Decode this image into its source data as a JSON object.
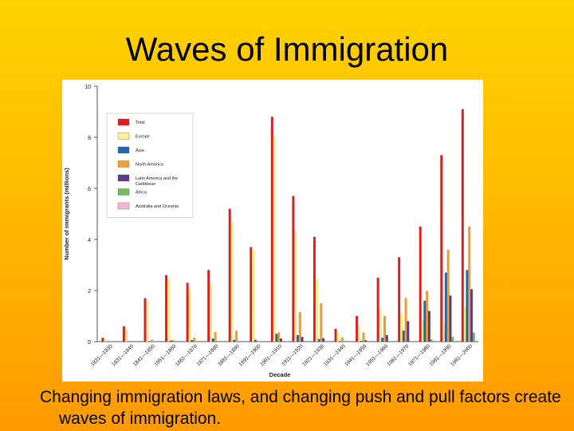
{
  "slide": {
    "title": "Waves of Immigration",
    "caption": "Changing immigration laws, and changing push and pull factors create waves of immigration."
  },
  "colors": {
    "Total": "#e41a1c",
    "Europe": "#fff38a",
    "Asia": "#2166ac",
    "North America": "#f0a030",
    "Latin America and the Caribbean": "#5a3a8c",
    "Africa": "#6cbf5a",
    "Australia and Oceania": "#f7b6d2"
  },
  "chart_data": {
    "type": "bar",
    "title": "",
    "xlabel": "Decade",
    "ylabel": "Number of immigrants (millions)",
    "ylim": [
      0,
      10
    ],
    "yticks": [
      0,
      2,
      4,
      6,
      8,
      10
    ],
    "legend_position": "top-left",
    "legend": [
      "Total",
      "Europe",
      "Asia",
      "North America",
      "Latin America and the Caribbean",
      "Africa",
      "Australia and Oceania"
    ],
    "categories": [
      "1821—1830",
      "1831—1840",
      "1841—1850",
      "1851—1860",
      "1861—1870",
      "1871—1880",
      "1881—1890",
      "1891—1900",
      "1901—1910",
      "1911—1920",
      "1921—1930",
      "1931—1940",
      "1941—1950",
      "1951—1960",
      "1961—1970",
      "1971—1980",
      "1981—1990",
      "1991—2000"
    ],
    "series": [
      {
        "name": "Total",
        "values": [
          0.15,
          0.6,
          1.7,
          2.6,
          2.3,
          2.8,
          5.2,
          3.7,
          8.8,
          5.7,
          4.1,
          0.5,
          1.0,
          2.5,
          3.3,
          4.5,
          7.3,
          9.1
        ]
      },
      {
        "name": "Europe",
        "values": [
          0.1,
          0.5,
          1.6,
          2.45,
          2.05,
          2.25,
          4.7,
          3.6,
          8.05,
          4.3,
          2.45,
          0.35,
          0.6,
          1.3,
          1.1,
          0.8,
          0.75,
          1.35
        ]
      },
      {
        "name": "Asia",
        "values": [
          0.0,
          0.0,
          0.0,
          0.04,
          0.06,
          0.12,
          0.07,
          0.07,
          0.3,
          0.25,
          0.1,
          0.02,
          0.03,
          0.15,
          0.43,
          1.6,
          2.7,
          2.8
        ]
      },
      {
        "name": "North America",
        "values": [
          0.01,
          0.03,
          0.06,
          0.06,
          0.15,
          0.38,
          0.42,
          0.0,
          0.36,
          1.15,
          1.5,
          0.16,
          0.35,
          1.0,
          1.7,
          1.98,
          3.6,
          4.5
        ]
      },
      {
        "name": "Latin America and the Caribbean",
        "values": [
          0.0,
          0.0,
          0.0,
          0.0,
          0.0,
          0.0,
          0.0,
          0.0,
          0.12,
          0.18,
          0.13,
          0.0,
          0.05,
          0.25,
          0.8,
          1.2,
          1.8,
          2.05
        ]
      },
      {
        "name": "Africa",
        "values": [
          0.0,
          0.0,
          0.0,
          0.0,
          0.0,
          0.0,
          0.0,
          0.0,
          0.0,
          0.0,
          0.0,
          0.0,
          0.0,
          0.0,
          0.0,
          0.08,
          0.18,
          0.35
        ]
      },
      {
        "name": "Australia and Oceania",
        "values": [
          0.0,
          0.0,
          0.0,
          0.0,
          0.0,
          0.0,
          0.0,
          0.0,
          0.0,
          0.0,
          0.0,
          0.0,
          0.0,
          0.0,
          0.0,
          0.0,
          0.0,
          0.0
        ]
      }
    ]
  }
}
